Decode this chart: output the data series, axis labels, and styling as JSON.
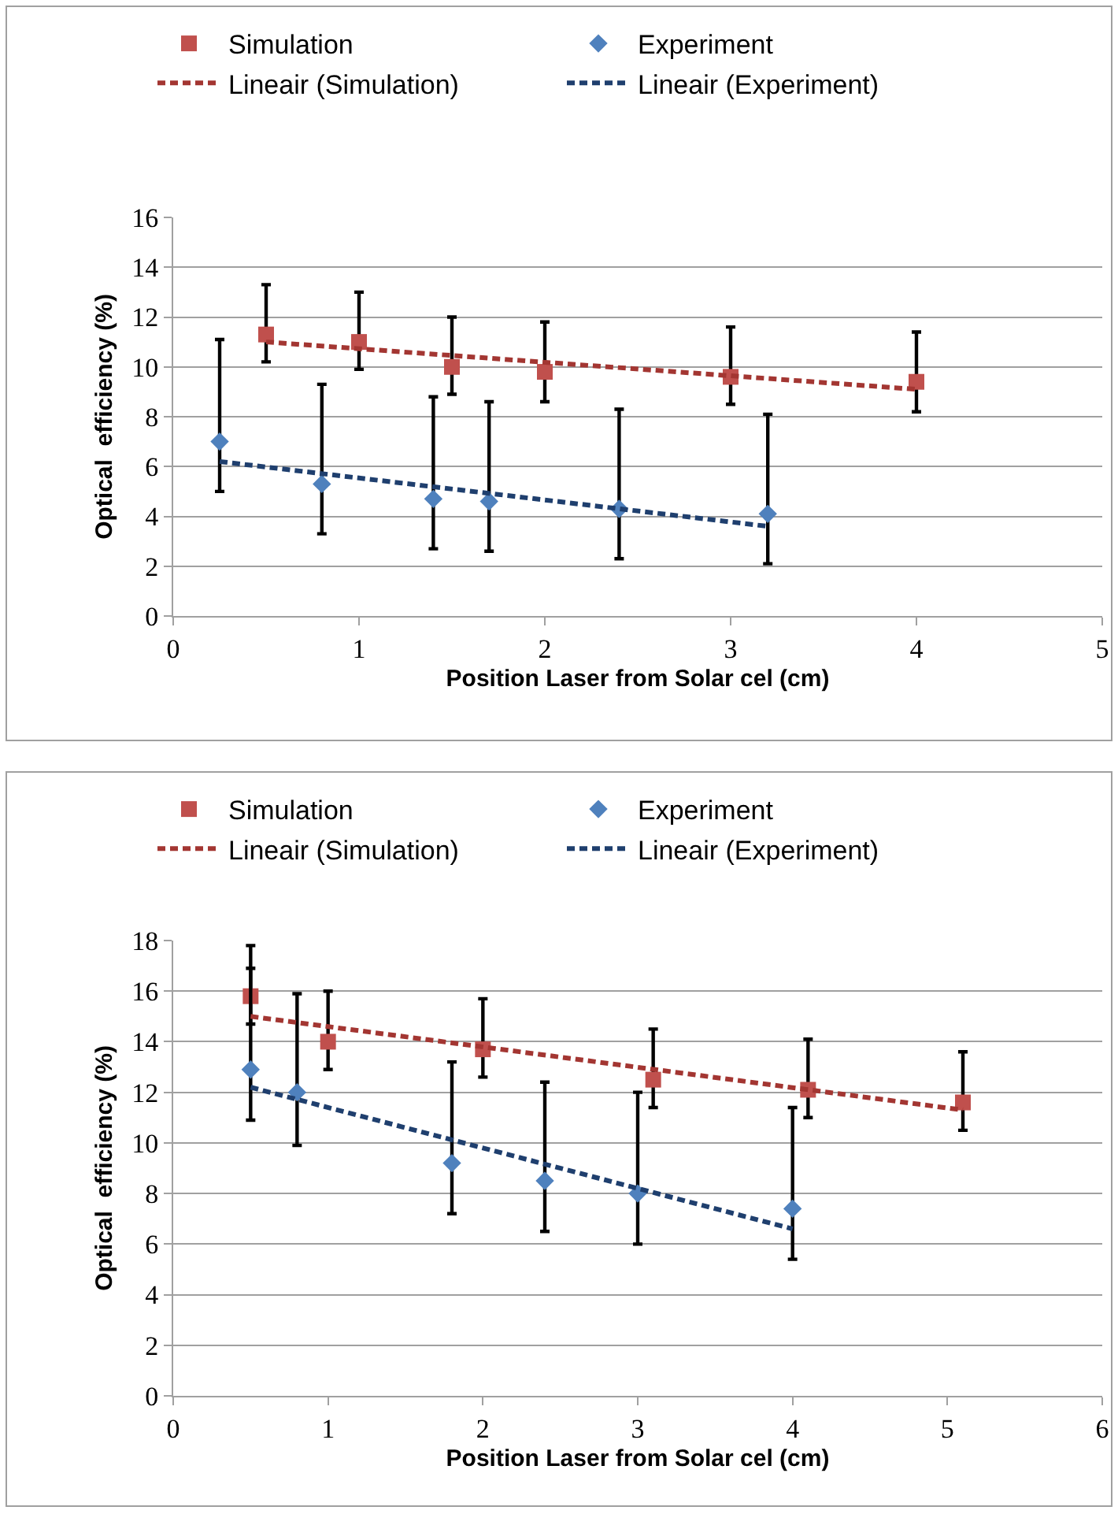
{
  "chart_data": [
    {
      "type": "scatter",
      "xlabel": "Position Laser from Solar cel (cm)",
      "ylabel": "Optical  efficiency (%)",
      "xlim": [
        0,
        5
      ],
      "xticks": [
        0,
        1,
        2,
        3,
        4,
        5
      ],
      "ylim": [
        0,
        16
      ],
      "yticks": [
        0,
        2,
        4,
        6,
        8,
        10,
        12,
        14,
        16
      ],
      "grid": "y",
      "legend": "top",
      "series": [
        {
          "name": "Simulation",
          "color": "#c0504d",
          "marker": "square",
          "x": [
            0.5,
            1,
            1.5,
            2,
            3,
            4
          ],
          "values": [
            11.3,
            11.0,
            10.0,
            9.8,
            9.6,
            9.4
          ],
          "errors": [
            [
              10.2,
              13.3
            ],
            [
              9.9,
              13.0
            ],
            [
              8.9,
              12.0
            ],
            [
              8.6,
              11.8
            ],
            [
              8.5,
              11.6
            ],
            [
              8.2,
              11.4
            ]
          ]
        },
        {
          "name": "Experiment",
          "color": "#4f81bd",
          "marker": "diamond",
          "x": [
            0.25,
            0.8,
            1.4,
            1.7,
            2.4,
            3.2
          ],
          "values": [
            7.0,
            5.3,
            4.7,
            4.6,
            4.3,
            4.1
          ],
          "errors": [
            [
              5.0,
              11.1
            ],
            [
              3.3,
              9.3
            ],
            [
              2.7,
              8.8
            ],
            [
              2.6,
              8.6
            ],
            [
              2.3,
              8.3
            ],
            [
              2.1,
              8.1
            ]
          ]
        },
        {
          "name": "Lineair (Simulation)",
          "type": "line",
          "line_style": "dashed",
          "marker": "none",
          "color": "#a33632",
          "x": [
            0.5,
            4
          ],
          "values": [
            11.0,
            9.1
          ]
        },
        {
          "name": "Lineair (Experiment)",
          "type": "line",
          "line_style": "dashed",
          "marker": "none",
          "color": "#1f3f6e",
          "x": [
            0.25,
            3.2
          ],
          "values": [
            6.2,
            3.6
          ]
        }
      ]
    },
    {
      "type": "scatter",
      "xlabel": "Position Laser from Solar cel (cm)",
      "ylabel": "Optical  efficiency (%)",
      "xlim": [
        0,
        6
      ],
      "xticks": [
        0,
        1,
        2,
        3,
        4,
        5,
        6
      ],
      "ylim": [
        0,
        18
      ],
      "yticks": [
        0,
        2,
        4,
        6,
        8,
        10,
        12,
        14,
        16,
        18
      ],
      "grid": "y",
      "legend": "top",
      "series": [
        {
          "name": "Simulation",
          "color": "#c0504d",
          "marker": "square",
          "x": [
            0.5,
            1,
            2,
            3.1,
            4.1,
            5.1
          ],
          "values": [
            15.8,
            14.0,
            13.7,
            12.5,
            12.1,
            11.6
          ],
          "errors": [
            [
              14.7,
              17.8
            ],
            [
              12.9,
              16.0
            ],
            [
              12.6,
              15.7
            ],
            [
              11.4,
              14.5
            ],
            [
              11.0,
              14.1
            ],
            [
              10.5,
              13.6
            ]
          ]
        },
        {
          "name": "Experiment",
          "color": "#4f81bd",
          "marker": "diamond",
          "x": [
            0.5,
            0.8,
            1.8,
            2.4,
            3.0,
            4.0
          ],
          "values": [
            12.9,
            12.0,
            9.2,
            8.5,
            8.0,
            7.4
          ],
          "errors": [
            [
              10.9,
              16.9
            ],
            [
              9.9,
              15.9
            ],
            [
              7.2,
              13.2
            ],
            [
              6.5,
              12.4
            ],
            [
              6.0,
              12.0
            ],
            [
              5.4,
              11.4
            ]
          ]
        },
        {
          "name": "Lineair (Simulation)",
          "type": "line",
          "line_style": "dashed",
          "marker": "none",
          "color": "#a33632",
          "x": [
            0.5,
            5.1
          ],
          "values": [
            15.0,
            11.3
          ]
        },
        {
          "name": "Lineair (Experiment)",
          "type": "line",
          "line_style": "dashed",
          "marker": "none",
          "color": "#1f3f6e",
          "x": [
            0.5,
            4.0
          ],
          "values": [
            12.2,
            6.6
          ]
        }
      ]
    }
  ]
}
